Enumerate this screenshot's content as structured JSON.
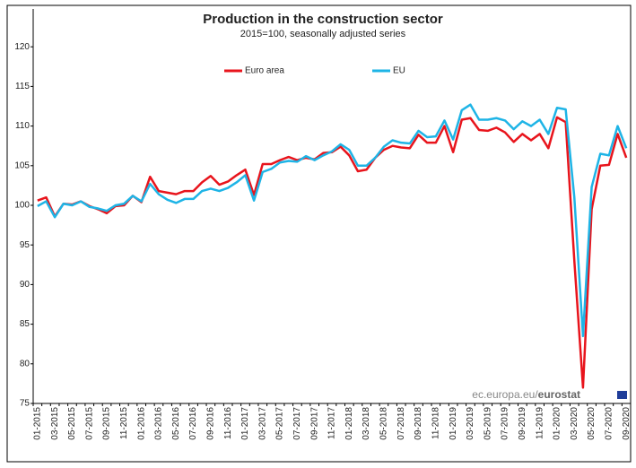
{
  "chart_data": {
    "type": "line",
    "title": "Production in the construction sector",
    "subtitle": "2015=100, seasonally adjusted series",
    "source": [
      "ec.europa.eu/",
      "eurostat"
    ],
    "categories": [
      "01-2015",
      null,
      "03-2015",
      null,
      "05-2015",
      null,
      "07-2015",
      null,
      "09-2015",
      null,
      "11-2015",
      null,
      "01-2016",
      null,
      "03-2016",
      null,
      "05-2016",
      null,
      "07-2016",
      null,
      "09-2016",
      null,
      "11-2016",
      null,
      "01-2017",
      null,
      "03-2017",
      null,
      "05-2017",
      null,
      "07-2017",
      null,
      "09-2017",
      null,
      "11-2017",
      null,
      "01-2018",
      null,
      "03-2018",
      null,
      "05-2018",
      null,
      "07-2018",
      null,
      "09-2018",
      null,
      "11-2018",
      null,
      "01-2019",
      null,
      "03-2019",
      null,
      "05-2019",
      null,
      "07-2019",
      null,
      "09-2019",
      null,
      "11-2019",
      null,
      "01-2020",
      null,
      "03-2020",
      null,
      "05-2020",
      null,
      "07-2020",
      null,
      "09-2020"
    ],
    "series": [
      {
        "name": "Euro area",
        "color": "#e8141c",
        "values": [
          100.6,
          101.0,
          98.6,
          100.2,
          100.1,
          100.5,
          99.9,
          99.5,
          99.0,
          99.9,
          100.0,
          101.2,
          100.4,
          103.6,
          101.8,
          101.6,
          101.4,
          101.8,
          101.8,
          102.9,
          103.7,
          102.6,
          103.0,
          103.8,
          104.5,
          101.3,
          105.2,
          105.2,
          105.7,
          106.1,
          105.7,
          106.0,
          105.8,
          106.6,
          106.7,
          107.4,
          106.3,
          104.3,
          104.5,
          106.0,
          107.0,
          107.5,
          107.3,
          107.2,
          108.9,
          107.9,
          107.9,
          110.0,
          106.7,
          110.8,
          111.0,
          109.5,
          109.4,
          109.8,
          109.2,
          108.0,
          109.0,
          108.2,
          109.0,
          107.2,
          111.1,
          110.5,
          93.0,
          77.0,
          99.5,
          105.0,
          105.1,
          109.0,
          106.0
        ]
      },
      {
        "name": "EU",
        "color": "#1eb4e6",
        "values": [
          99.9,
          100.5,
          98.5,
          100.2,
          100.0,
          100.5,
          99.8,
          99.6,
          99.3,
          100.0,
          100.2,
          101.2,
          100.5,
          102.7,
          101.4,
          100.7,
          100.3,
          100.8,
          100.8,
          101.8,
          102.1,
          101.8,
          102.2,
          102.9,
          103.8,
          100.6,
          104.2,
          104.6,
          105.4,
          105.6,
          105.5,
          106.2,
          105.7,
          106.3,
          106.8,
          107.7,
          107.0,
          105.0,
          105.0,
          106.0,
          107.4,
          108.2,
          107.9,
          107.8,
          109.4,
          108.6,
          108.7,
          110.7,
          108.3,
          112.0,
          112.7,
          110.8,
          110.8,
          111.0,
          110.7,
          109.6,
          110.6,
          110.0,
          110.8,
          109.0,
          112.3,
          112.1,
          101.0,
          83.5,
          102.3,
          106.5,
          106.3,
          110.0,
          107.2
        ]
      }
    ],
    "ylim": [
      75,
      125
    ],
    "yticks": [
      75,
      80,
      85,
      90,
      95,
      100,
      105,
      110,
      115,
      120
    ],
    "grid": false
  }
}
